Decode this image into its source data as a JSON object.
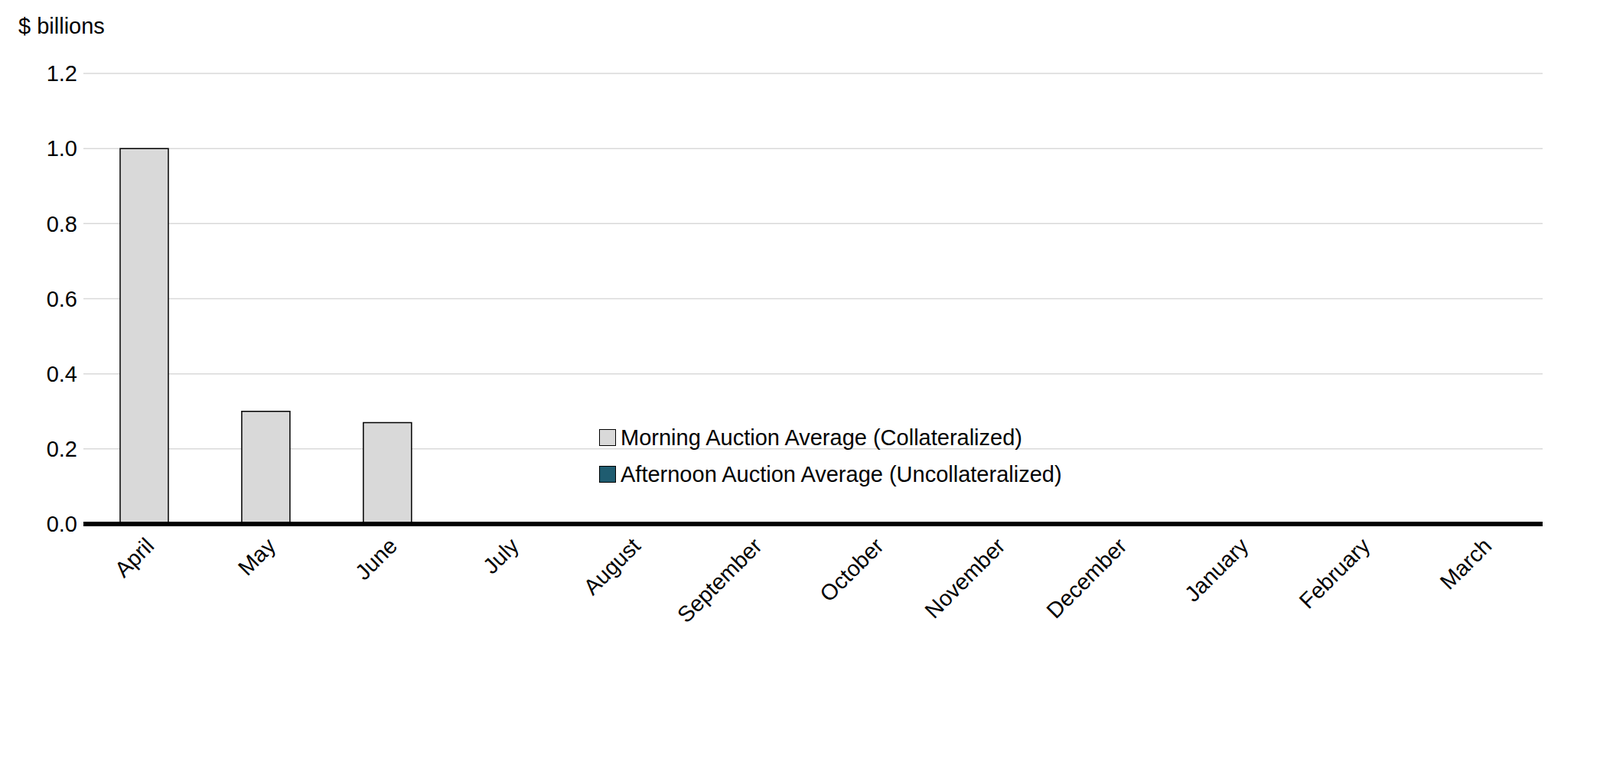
{
  "chart_data": {
    "type": "bar",
    "y_label": "$ billions",
    "categories": [
      "April",
      "May",
      "June",
      "July",
      "August",
      "September",
      "October",
      "November",
      "December",
      "January",
      "February",
      "March"
    ],
    "series": [
      {
        "name": "Morning Auction Average (Collateralized)",
        "color": "#d9d9d9",
        "values": [
          1.0,
          0.3,
          0.27,
          null,
          null,
          null,
          null,
          null,
          null,
          null,
          null,
          null
        ]
      },
      {
        "name": "Afternoon Auction Average (Uncollateralized)",
        "color": "#1f5c70",
        "values": [
          0,
          0,
          0,
          null,
          null,
          null,
          null,
          null,
          null,
          null,
          null,
          null
        ]
      }
    ],
    "ylim": [
      0,
      1.2
    ],
    "yticks": [
      {
        "value": 0,
        "label": "0.0"
      },
      0.2,
      0.4,
      0.6,
      0.8,
      {
        "value": 1,
        "label": "1.0"
      },
      1.2
    ],
    "grid": true,
    "legend": "center"
  }
}
